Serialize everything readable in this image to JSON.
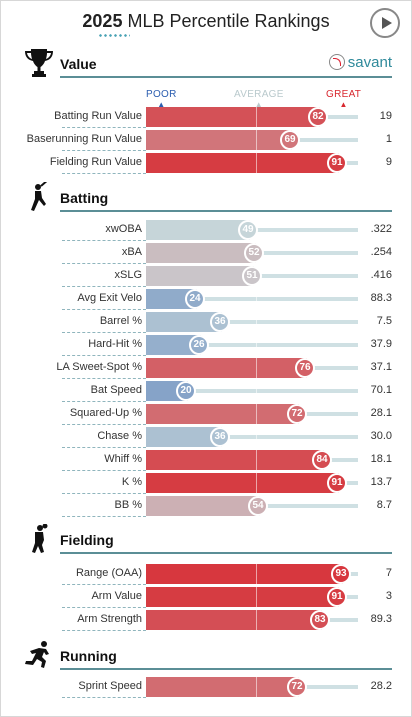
{
  "header": {
    "year": "2025",
    "title": "MLB Percentile Rankings"
  },
  "brand": {
    "name": "savant"
  },
  "scale": {
    "poor": "POOR",
    "average": "AVERAGE",
    "great": "GREAT"
  },
  "colors": {
    "poor": "#2c5eb0",
    "great": "#d8282f",
    "accent": "#5b8e96"
  },
  "sections": [
    {
      "id": "value",
      "label": "Value",
      "icon": "trophy-icon",
      "rows": [
        {
          "label": "Batting Run Value",
          "percentile": 82,
          "value": "19"
        },
        {
          "label": "Baserunning Run Value",
          "percentile": 69,
          "value": "1"
        },
        {
          "label": "Fielding Run Value",
          "percentile": 91,
          "value": "9"
        }
      ]
    },
    {
      "id": "batting",
      "label": "Batting",
      "icon": "batter-icon",
      "rows": [
        {
          "label": "xwOBA",
          "percentile": 49,
          "value": ".322"
        },
        {
          "label": "xBA",
          "percentile": 52,
          "value": ".254"
        },
        {
          "label": "xSLG",
          "percentile": 51,
          "value": ".416"
        },
        {
          "label": "Avg Exit Velo",
          "percentile": 24,
          "value": "88.3"
        },
        {
          "label": "Barrel %",
          "percentile": 36,
          "value": "7.5"
        },
        {
          "label": "Hard-Hit %",
          "percentile": 26,
          "value": "37.9"
        },
        {
          "label": "LA Sweet-Spot %",
          "percentile": 76,
          "value": "37.1"
        },
        {
          "label": "Bat Speed",
          "percentile": 20,
          "value": "70.1"
        },
        {
          "label": "Squared-Up %",
          "percentile": 72,
          "value": "28.1"
        },
        {
          "label": "Chase %",
          "percentile": 36,
          "value": "30.0"
        },
        {
          "label": "Whiff %",
          "percentile": 84,
          "value": "18.1"
        },
        {
          "label": "K %",
          "percentile": 91,
          "value": "13.7"
        },
        {
          "label": "BB %",
          "percentile": 54,
          "value": "8.7"
        }
      ]
    },
    {
      "id": "fielding",
      "label": "Fielding",
      "icon": "fielder-icon",
      "rows": [
        {
          "label": "Range (OAA)",
          "percentile": 93,
          "value": "7"
        },
        {
          "label": "Arm Value",
          "percentile": 91,
          "value": "3"
        },
        {
          "label": "Arm Strength",
          "percentile": 83,
          "value": "89.3"
        }
      ]
    },
    {
      "id": "running",
      "label": "Running",
      "icon": "runner-icon",
      "rows": [
        {
          "label": "Sprint Speed",
          "percentile": 72,
          "value": "28.2"
        }
      ]
    }
  ]
}
